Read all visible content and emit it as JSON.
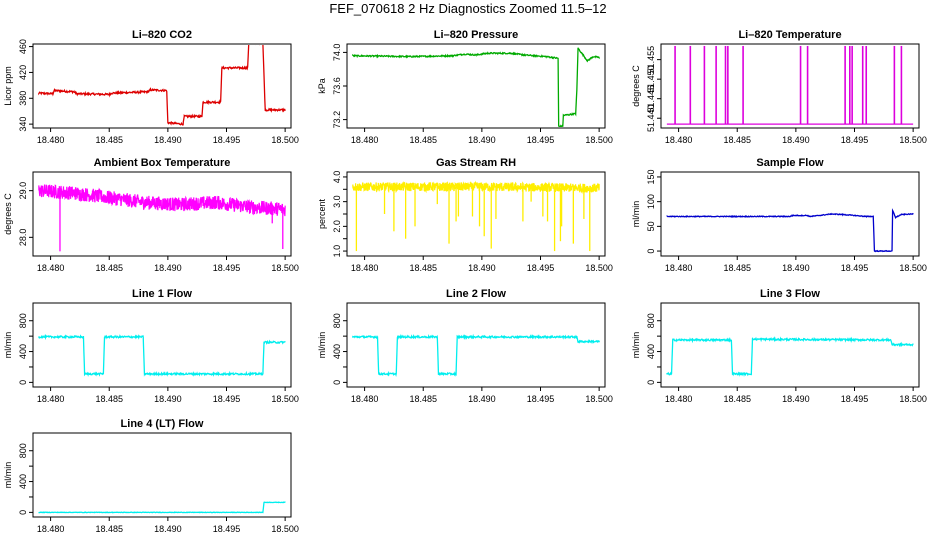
{
  "title": "FEF_070618  2 Hz Diagnostics Zoomed 11.5–12",
  "colors": {
    "co2": "#dd0000",
    "pressure": "#00aa00",
    "temperature": "#dd00dd",
    "ambient": "#ff00ff",
    "rh": "#ffee00",
    "sample": "#0000cc",
    "lineflow": "#00eeee"
  },
  "chart_data": [
    {
      "type": "line",
      "title": "Li–820 CO2",
      "ylabel": "Licor ppm",
      "xlim": [
        18.4785,
        18.5005
      ],
      "ylim": [
        334,
        464
      ],
      "xticks": [
        18.48,
        18.485,
        18.49,
        18.495,
        18.5
      ],
      "xtick_labels": [
        "18.480",
        "18.485",
        "18.490",
        "18.495",
        "18.500"
      ],
      "yticks": [
        340,
        380,
        420,
        460
      ],
      "ytick_labels": [
        "340",
        "380",
        "420",
        "460"
      ],
      "color_key": "co2",
      "noise": 1.5,
      "series": [
        {
          "x": [
            18.479,
            18.4802,
            18.4803,
            18.482,
            18.4822,
            18.485,
            18.4852,
            18.4883,
            18.4885,
            18.4899,
            18.49,
            18.4913,
            18.4914,
            18.4929,
            18.493,
            18.4945,
            18.4946,
            18.4968,
            18.4969,
            18.4981,
            18.4983,
            18.5
          ],
          "y": [
            388,
            387,
            392,
            390,
            387,
            386,
            388,
            390,
            393,
            392,
            342,
            340,
            352,
            352,
            374,
            374,
            427,
            427,
            466,
            466,
            362,
            362
          ]
        }
      ]
    },
    {
      "type": "line",
      "title": "Li–820 Pressure",
      "ylabel": "kPa",
      "xlim": [
        18.4785,
        18.5005
      ],
      "ylim": [
        73.1,
        74.1
      ],
      "xticks": [
        18.48,
        18.485,
        18.49,
        18.495,
        18.5
      ],
      "xtick_labels": [
        "18.480",
        "18.485",
        "18.490",
        "18.495",
        "18.500"
      ],
      "yticks": [
        73.2,
        73.6,
        74.0
      ],
      "ytick_labels": [
        "73.2",
        "73.6",
        "74.0"
      ],
      "color_key": "pressure",
      "noise": 0.008,
      "series": [
        {
          "x": [
            18.479,
            18.484,
            18.4875,
            18.4885,
            18.4895,
            18.4905,
            18.4925,
            18.4935,
            18.4945,
            18.4955,
            18.4965,
            18.49655,
            18.4969,
            18.49695,
            18.498,
            18.4981,
            18.4982,
            18.499,
            18.4995,
            18.5
          ],
          "y": [
            73.96,
            73.95,
            73.96,
            73.98,
            73.97,
            73.99,
            73.99,
            73.97,
            73.96,
            73.95,
            73.93,
            73.12,
            73.12,
            73.25,
            73.27,
            73.55,
            74.05,
            73.9,
            73.95,
            73.94
          ]
        }
      ]
    },
    {
      "type": "line",
      "title": "Li–820 Temperature",
      "ylabel": "degrees C",
      "xlim": [
        18.4785,
        18.5005
      ],
      "ylim": [
        51.4375,
        51.459
      ],
      "xticks": [
        18.48,
        18.485,
        18.49,
        18.495,
        18.5
      ],
      "xtick_labels": [
        "18.480",
        "18.485",
        "18.490",
        "18.495",
        "18.500"
      ],
      "yticks": [
        51.44,
        51.445,
        51.45,
        51.455
      ],
      "ytick_labels": [
        "51.440",
        "51.445",
        "51.450",
        "51.455"
      ],
      "color_key": "temperature",
      "noise": 0,
      "baseline": 51.4385,
      "spike_top": 51.4585,
      "spikes": [
        18.4797,
        18.481,
        18.4822,
        18.4832,
        18.484,
        18.4842,
        18.4855,
        18.4904,
        18.491,
        18.4942,
        18.4946,
        18.4948,
        18.4957,
        18.496,
        18.4984,
        18.499
      ]
    },
    {
      "type": "line",
      "title": "Ambient Box Temperature",
      "ylabel": "degrees C",
      "xlim": [
        18.4785,
        18.5005
      ],
      "ylim": [
        27.6,
        29.4
      ],
      "xticks": [
        18.48,
        18.485,
        18.49,
        18.495,
        18.5
      ],
      "xtick_labels": [
        "18.480",
        "18.485",
        "18.490",
        "18.495",
        "18.500"
      ],
      "yticks": [
        28.0,
        29.0
      ],
      "ytick_labels": [
        "28.0",
        "29.0"
      ],
      "color_key": "ambient",
      "noise": 0.15,
      "dense": true,
      "series": [
        {
          "x": [
            18.479,
            18.482,
            18.485,
            18.488,
            18.491,
            18.494,
            18.497,
            18.5
          ],
          "y": [
            29.0,
            28.95,
            28.85,
            28.75,
            28.7,
            28.75,
            28.65,
            28.6
          ]
        }
      ],
      "dips": [
        [
          18.4808,
          27.7
        ],
        [
          18.4998,
          27.75
        ],
        [
          18.4989,
          28.3
        ]
      ]
    },
    {
      "type": "line",
      "title": "Gas Stream RH",
      "ylabel": "percent",
      "xlim": [
        18.4785,
        18.5005
      ],
      "ylim": [
        0.8,
        4.2
      ],
      "xticks": [
        18.48,
        18.485,
        18.49,
        18.495,
        18.5
      ],
      "xtick_labels": [
        "18.480",
        "18.485",
        "18.490",
        "18.495",
        "18.500"
      ],
      "yticks": [
        1.0,
        2.0,
        3.0,
        4.0
      ],
      "ytick_labels": [
        "1.0",
        "2.0",
        "3.0",
        "4.0"
      ],
      "yticks_minor": [
        1.5,
        2.5,
        3.5
      ],
      "ytick_minor_labels": [
        "",
        "",
        ""
      ],
      "color_key": "rh",
      "noise": 0.18,
      "dense": true,
      "series": [
        {
          "x": [
            18.479,
            18.49,
            18.5
          ],
          "y": [
            3.6,
            3.6,
            3.55
          ]
        }
      ],
      "dips": [
        [
          18.4793,
          1.0
        ],
        [
          18.4817,
          2.5
        ],
        [
          18.4825,
          1.8
        ],
        [
          18.4835,
          1.5
        ],
        [
          18.4843,
          2.0
        ],
        [
          18.4862,
          2.9
        ],
        [
          18.4872,
          1.3
        ],
        [
          18.4878,
          2.2
        ],
        [
          18.488,
          2.4
        ],
        [
          18.4892,
          2.4
        ],
        [
          18.4898,
          2.0
        ],
        [
          18.4902,
          1.6
        ],
        [
          18.4908,
          1.1
        ],
        [
          18.4912,
          2.3
        ],
        [
          18.4935,
          2.2
        ],
        [
          18.4942,
          3.0
        ],
        [
          18.4952,
          2.4
        ],
        [
          18.4956,
          2.2
        ],
        [
          18.4962,
          1.0
        ],
        [
          18.4967,
          1.4
        ],
        [
          18.4968,
          2.0
        ],
        [
          18.4978,
          1.3
        ],
        [
          18.4987,
          2.3
        ],
        [
          18.4992,
          1.0
        ]
      ]
    },
    {
      "type": "line",
      "title": "Sample Flow",
      "ylabel": "ml/min",
      "xlim": [
        18.4785,
        18.5005
      ],
      "ylim": [
        -10,
        160
      ],
      "xticks": [
        18.48,
        18.485,
        18.49,
        18.495,
        18.5
      ],
      "xtick_labels": [
        "18.480",
        "18.485",
        "18.490",
        "18.495",
        "18.500"
      ],
      "yticks": [
        0,
        50,
        100,
        150
      ],
      "ytick_labels": [
        "0",
        "50",
        "100",
        "150"
      ],
      "color_key": "sample",
      "noise": 0.8,
      "series": [
        {
          "x": [
            18.479,
            18.4895,
            18.4897,
            18.491,
            18.4912,
            18.492,
            18.493,
            18.494,
            18.496,
            18.4966,
            18.4967,
            18.4982,
            18.49825,
            18.4985,
            18.499,
            18.5
          ],
          "y": [
            70,
            70,
            72,
            72,
            70,
            72,
            75,
            74,
            70,
            70,
            0,
            0,
            82,
            68,
            74,
            75
          ]
        }
      ]
    },
    {
      "type": "line",
      "title": "Line 1 Flow",
      "ylabel": "ml/min",
      "xlim": [
        18.4785,
        18.5005
      ],
      "ylim": [
        -60,
        1030
      ],
      "xticks": [
        18.48,
        18.485,
        18.49,
        18.495,
        18.5
      ],
      "xtick_labels": [
        "18.480",
        "18.485",
        "18.490",
        "18.495",
        "18.500"
      ],
      "yticks": [
        0,
        400,
        800
      ],
      "ytick_labels": [
        "0",
        "400",
        "800"
      ],
      "yticks_minor": [
        200,
        600
      ],
      "ytick_minor_labels": [
        "",
        ""
      ],
      "color_key": "lineflow",
      "noise": 12,
      "series": [
        {
          "x": [
            18.479,
            18.4828,
            18.4829,
            18.4845,
            18.4846,
            18.4879,
            18.488,
            18.4981,
            18.4982,
            18.5
          ],
          "y": [
            590,
            590,
            110,
            110,
            590,
            590,
            110,
            110,
            520,
            520
          ]
        }
      ]
    },
    {
      "type": "line",
      "title": "Line 2 Flow",
      "ylabel": "ml/min",
      "xlim": [
        18.4785,
        18.5005
      ],
      "ylim": [
        -60,
        1030
      ],
      "xticks": [
        18.48,
        18.485,
        18.49,
        18.495,
        18.5
      ],
      "xtick_labels": [
        "18.480",
        "18.485",
        "18.490",
        "18.495",
        "18.500"
      ],
      "yticks": [
        0,
        400,
        800
      ],
      "ytick_labels": [
        "0",
        "400",
        "800"
      ],
      "yticks_minor": [
        200,
        600
      ],
      "ytick_minor_labels": [
        "",
        ""
      ],
      "color_key": "lineflow",
      "noise": 12,
      "series": [
        {
          "x": [
            18.479,
            18.4811,
            18.4812,
            18.4827,
            18.4828,
            18.4862,
            18.4863,
            18.4878,
            18.4879,
            18.4981,
            18.4982,
            18.5
          ],
          "y": [
            590,
            590,
            110,
            110,
            590,
            590,
            110,
            110,
            590,
            590,
            530,
            530
          ]
        }
      ]
    },
    {
      "type": "line",
      "title": "Line 3 Flow",
      "ylabel": "ml/min",
      "xlim": [
        18.4785,
        18.5005
      ],
      "ylim": [
        -60,
        1030
      ],
      "xticks": [
        18.48,
        18.485,
        18.49,
        18.495,
        18.5
      ],
      "xtick_labels": [
        "18.480",
        "18.485",
        "18.490",
        "18.495",
        "18.500"
      ],
      "yticks": [
        0,
        400,
        800
      ],
      "ytick_labels": [
        "0",
        "400",
        "800"
      ],
      "yticks_minor": [
        200,
        600
      ],
      "ytick_minor_labels": [
        "",
        ""
      ],
      "color_key": "lineflow",
      "noise": 12,
      "series": [
        {
          "x": [
            18.479,
            18.4794,
            18.4795,
            18.4845,
            18.4846,
            18.4862,
            18.4863,
            18.4981,
            18.4982,
            18.5
          ],
          "y": [
            110,
            110,
            550,
            550,
            110,
            110,
            560,
            550,
            490,
            490
          ]
        }
      ]
    },
    {
      "type": "line",
      "title": "Line 4 (LT) Flow",
      "ylabel": "ml/min",
      "xlim": [
        18.4785,
        18.5005
      ],
      "ylim": [
        -60,
        1030
      ],
      "xticks": [
        18.48,
        18.485,
        18.49,
        18.495,
        18.5
      ],
      "xtick_labels": [
        "18.480",
        "18.485",
        "18.490",
        "18.495",
        "18.500"
      ],
      "yticks": [
        0,
        400,
        800
      ],
      "ytick_labels": [
        "0",
        "400",
        "800"
      ],
      "yticks_minor": [
        200,
        600
      ],
      "ytick_minor_labels": [
        "",
        ""
      ],
      "color_key": "lineflow",
      "noise": 3,
      "series": [
        {
          "x": [
            18.479,
            18.4981,
            18.4982,
            18.5
          ],
          "y": [
            0,
            0,
            130,
            130
          ]
        }
      ]
    }
  ]
}
